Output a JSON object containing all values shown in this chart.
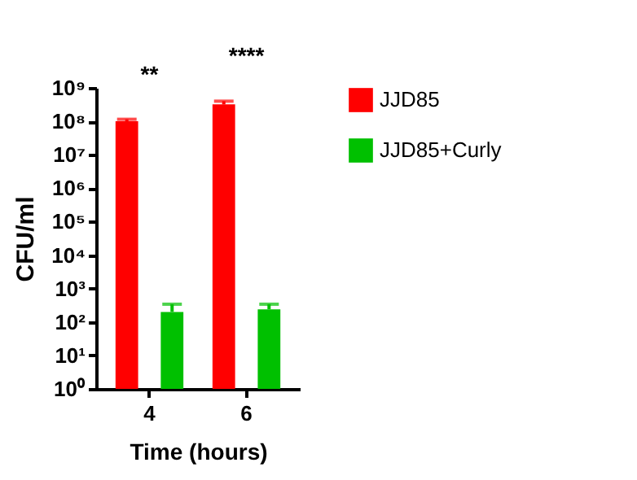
{
  "chart_data": {
    "type": "bar",
    "xlabel": "Time (hours)",
    "ylabel": "CFU/ml",
    "categories": [
      "4",
      "6"
    ],
    "series": [
      {
        "name": "JJD85",
        "color": "#ff0000",
        "values": [
          100000000,
          320000000
        ],
        "errors": [
          [
            100000000,
            115000000
          ],
          [
            320000000,
            400000000
          ]
        ]
      },
      {
        "name": "JJD85+Curly",
        "color": "#00c000",
        "values": [
          200,
          240
        ],
        "errors": [
          [
            200,
            340
          ],
          [
            240,
            340
          ]
        ]
      }
    ],
    "log": "y",
    "ylim": [
      1,
      1000000000
    ],
    "yticks": [
      {
        "value": 1,
        "label": "10⁰"
      },
      {
        "value": 10,
        "label": "10¹"
      },
      {
        "value": 100,
        "label": "10²"
      },
      {
        "value": 1000,
        "label": "10³"
      },
      {
        "value": 10000,
        "label": "10⁴"
      },
      {
        "value": 100000,
        "label": "10⁵"
      },
      {
        "value": 1000000,
        "label": "10⁶"
      },
      {
        "value": 10000000,
        "label": "10⁷"
      },
      {
        "value": 100000000,
        "label": "10⁸"
      },
      {
        "value": 1000000000,
        "label": "10⁹"
      }
    ],
    "annotations": [
      "**",
      "****"
    ],
    "legend": "top right"
  }
}
